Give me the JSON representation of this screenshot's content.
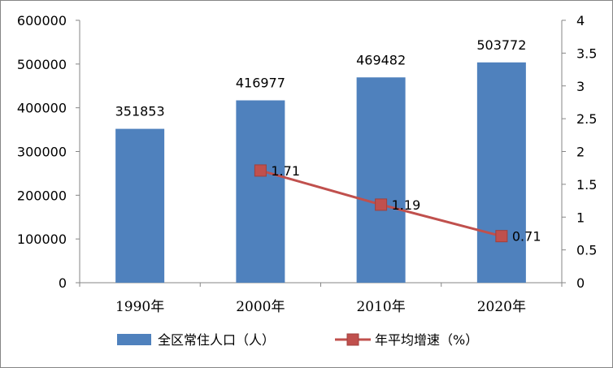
{
  "chart_data": {
    "type": "bar",
    "categories": [
      "1990年",
      "2000年",
      "2010年",
      "2020年"
    ],
    "series": [
      {
        "name": "全区常住人口（人）",
        "type": "bar",
        "axis": "left",
        "color": "#4F81BD",
        "values": [
          351853,
          416977,
          469482,
          503772
        ],
        "labels": [
          "351853",
          "416977",
          "469482",
          "503772"
        ]
      },
      {
        "name": "年平均增速（%）",
        "type": "line",
        "axis": "right",
        "color": "#C0504D",
        "values": [
          null,
          1.71,
          1.19,
          0.71
        ],
        "labels": [
          "",
          "1.71",
          "1.19",
          "0.71"
        ]
      }
    ],
    "y_left": {
      "min": 0,
      "max": 600000,
      "ticks": [
        0,
        100000,
        200000,
        300000,
        400000,
        500000,
        600000
      ],
      "tick_labels": [
        "0",
        "100000",
        "200000",
        "300000",
        "400000",
        "500000",
        "600000"
      ]
    },
    "y_right": {
      "min": 0,
      "max": 4,
      "ticks": [
        0,
        0.5,
        1,
        1.5,
        2,
        2.5,
        3,
        3.5,
        4
      ],
      "tick_labels": [
        "0",
        "0.5",
        "1",
        "1.5",
        "2",
        "2.5",
        "3",
        "3.5",
        "4"
      ]
    },
    "grid": false,
    "legend_position": "bottom"
  }
}
